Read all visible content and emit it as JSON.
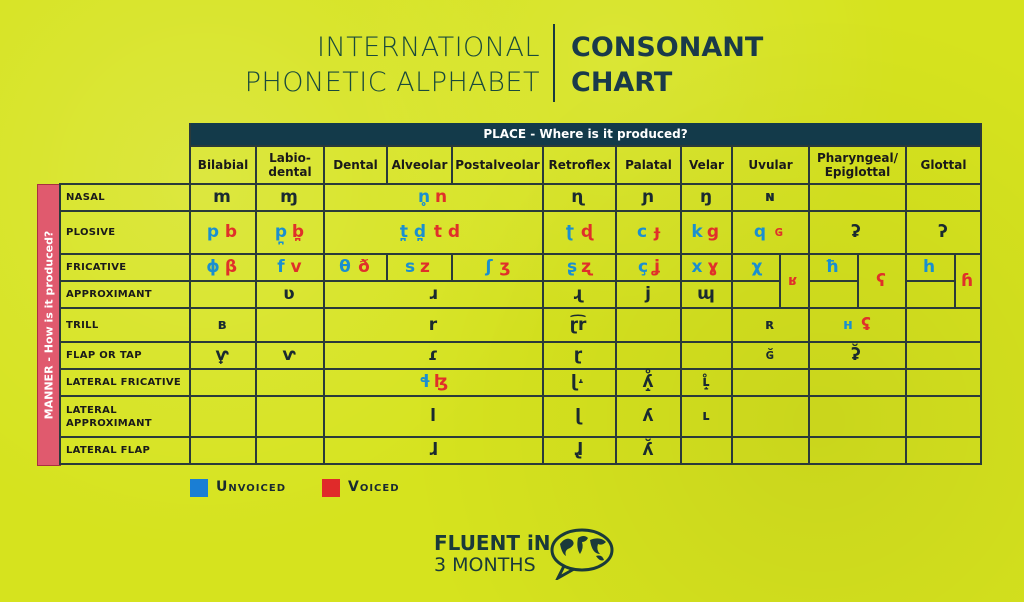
{
  "title": {
    "left_line1": "INTERNATIONAL",
    "left_line2": "PHONETIC ALPHABET",
    "right_line1": "CONSONANT",
    "right_line2": "CHART"
  },
  "place_header": "PLACE - Where is it produced?",
  "manner_header": "MANNER - How is it produced?",
  "columns": [
    "Bilabial",
    "Labio-\ndental",
    "Dental",
    "Alveolar",
    "Postalveolar",
    "Retroflex",
    "Palatal",
    "Velar",
    "Uvular",
    "Pharyngeal/\nEpiglottal",
    "Glottal"
  ],
  "rows": [
    "NASAL",
    "PLOSIVE",
    "FRICATIVE",
    "APPROXIMANT",
    "TRILL",
    "FLAP OR TAP",
    "LATERAL FRICATIVE",
    "LATERAL\nAPPROXIMANT",
    "LATERAL FLAP"
  ],
  "colors": {
    "unvoiced": "#1a8fd0",
    "voiced": "#e0302a",
    "neutral": "#1a2a30",
    "background": "#d6e31e",
    "header": "#133a4a",
    "manner": "#e05a6e"
  },
  "cells": {
    "nasal": {
      "bilabial": "m",
      "labiodental": "ɱ",
      "alveolar_u": "n̥",
      "alveolar_v": "n",
      "retroflex": "ɳ",
      "palatal": "ɲ",
      "velar": "ŋ",
      "uvular": "ɴ"
    },
    "plosive": {
      "bilabial_u": "p",
      "bilabial_v": "b",
      "labiodental_u": "p̪",
      "labiodental_v": "b̪",
      "alveolar_u": "t̪ d̪",
      "alveolar_v": "t d",
      "retroflex_u": "ʈ",
      "retroflex_v": "ɖ",
      "palatal_u": "c",
      "palatal_v": "ɟ",
      "velar_u": "k",
      "velar_v": "g",
      "uvular_u": "q",
      "uvular_v": "ɢ",
      "pharyngeal": "ʡ",
      "glottal": "ʔ"
    },
    "fricative": {
      "bilabial_u": "ɸ",
      "bilabial_v": "β",
      "labiodental_u": "f",
      "labiodental_v": "v",
      "dental_u": "θ",
      "dental_v": "ð",
      "alveolar_u": "s",
      "alveolar_v": "z",
      "postalveolar_u": "ʃ",
      "postalveolar_v": "ʒ",
      "retroflex_u": "ʂ",
      "retroflex_v": "ʐ",
      "palatal_u": "ç",
      "palatal_v": "ʝ",
      "velar_u": "x",
      "velar_v": "ɣ",
      "uvular_u": "χ",
      "uvular_v": "ʁ",
      "pharyngeal_u": "ħ",
      "pharyngeal_v": "ʕ",
      "glottal_u": "h",
      "glottal_v": "ɦ"
    },
    "approximant": {
      "labiodental": "ʋ",
      "alveolar": "ɹ",
      "retroflex": "ɻ",
      "palatal": "j",
      "velar": "ɰ"
    },
    "trill": {
      "bilabial": "ʙ",
      "alveolar": "r",
      "retroflex": "ɽ͡r",
      "uvular": "ʀ",
      "pharyngeal_u": "ʜ",
      "pharyngeal_v": "ʢ"
    },
    "flap": {
      "bilabial": "ⱱ̟",
      "labiodental": "ⱱ",
      "alveolar": "ɾ",
      "retroflex": "ɽ",
      "uvular": "ɢ̆",
      "pharyngeal": "ʡ̆"
    },
    "lateral_fricative": {
      "alveolar_u": "ɬ",
      "alveolar_v": "ɮ",
      "retroflex": "ɭ˔",
      "palatal": "ʎ̝̊",
      "velar": "ʟ̝̊"
    },
    "lateral_approximant": {
      "alveolar": "l",
      "retroflex": "ɭ",
      "palatal": "ʎ",
      "velar": "ʟ"
    },
    "lateral_flap": {
      "alveolar": "ɺ",
      "retroflex": "ɺ̢",
      "palatal": "ʎ̆"
    }
  },
  "legend": {
    "unvoiced": "Unvoiced",
    "voiced": "Voiced"
  },
  "logo": {
    "line1": "FLUENT iN",
    "line2": "3 MONTHS"
  }
}
